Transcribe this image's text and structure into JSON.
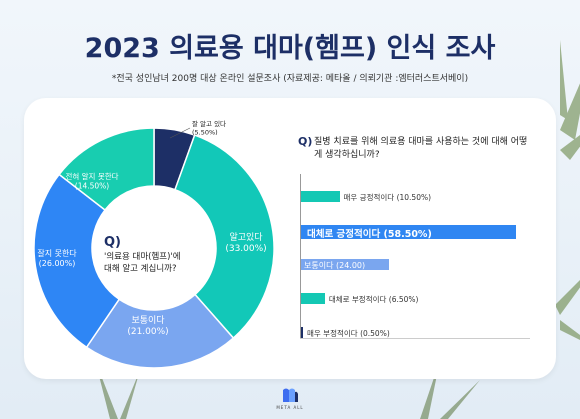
{
  "header": {
    "title": "2023 의료용 대마(헴프) 인식 조사",
    "subtitle": "*전국 성인남녀 200명 대상 온라인 설문조사 (자료제공: 메타올 / 의뢰기관 :엠터러스트서베이)"
  },
  "chart_data": [
    {
      "type": "pie",
      "question_mark": "Q)",
      "question": "'의료용 대마(헴프)'에 대해 알고 계십니까?",
      "slices": [
        {
          "label": "잘 알고 있다",
          "pct_label": "(5.50%)",
          "value": 5.5,
          "color": "#1d2f66"
        },
        {
          "label": "알고있다",
          "pct_label": "(33.00%)",
          "value": 33.0,
          "color": "#12c8b8"
        },
        {
          "label": "보통이다",
          "pct_label": "(21.00%)",
          "value": 21.0,
          "color": "#7aa6f0"
        },
        {
          "label": "잘지 못한다",
          "pct_label": "(26.00%)",
          "value": 26.0,
          "color": "#2e86f5"
        },
        {
          "label": "전혀 알지 못한다",
          "pct_label": "(14.50%)",
          "value": 14.5,
          "color": "#18cdb0"
        }
      ]
    },
    {
      "type": "bar",
      "question_mark": "Q)",
      "question": "질병 치료를 위해 의료용 대마를 사용하는 것에 대해 어떻게 생각하십니까?",
      "xlim": [
        0,
        60
      ],
      "bars": [
        {
          "label": "매우 긍정적이다 (10.50%)",
          "value": 10.5,
          "color": "#14c8b4"
        },
        {
          "label": "대체로 긍정적이다 (58.50%)",
          "value": 58.5,
          "color": "#2f86f2"
        },
        {
          "label": "보통이다 (24.00)",
          "value": 24.0,
          "color": "#7aa6ef"
        },
        {
          "label": "대체로 부정적이다 (6.50%)",
          "value": 6.5,
          "color": "#14c8b4"
        },
        {
          "label": "매우 부정적이다 (0.50%)",
          "value": 0.5,
          "color": "#1d2f66"
        }
      ]
    }
  ],
  "footer": {
    "logo_text": "META ALL"
  }
}
